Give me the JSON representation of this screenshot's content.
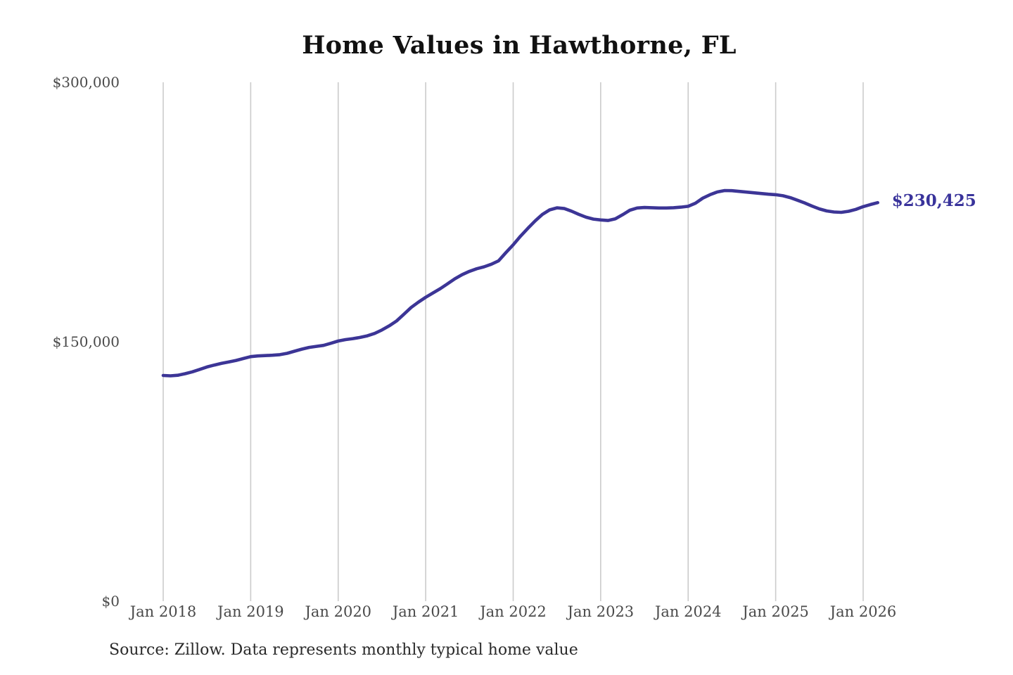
{
  "page": {
    "background": "#ffffff"
  },
  "chart": {
    "title": "Home Values in Hawthorne, FL",
    "end_label": "$230,425",
    "source": "Source: Zillow. Data represents monthly typical home value",
    "line_color": "#3c3596",
    "grid_color": "#cbcbcb",
    "tick_text_color": "#4a4a4a"
  },
  "chart_data": {
    "type": "line",
    "title": "Home Values in Hawthorne, FL",
    "xlabel": "",
    "ylabel": "",
    "ylim": [
      0,
      300000
    ],
    "grid": "vertical-only",
    "legend_position": "none",
    "y_ticks": [
      {
        "label": "$300,000",
        "value": 300000
      },
      {
        "label": "$150,000",
        "value": 150000
      },
      {
        "label": "$0",
        "value": 0
      }
    ],
    "x_ticks": [
      {
        "label": "Jan 2018",
        "month_index": 0
      },
      {
        "label": "Jan 2019",
        "month_index": 12
      },
      {
        "label": "Jan 2020",
        "month_index": 24
      },
      {
        "label": "Jan 2021",
        "month_index": 36
      },
      {
        "label": "Jan 2022",
        "month_index": 48
      },
      {
        "label": "Jan 2023",
        "month_index": 60
      },
      {
        "label": "Jan 2024",
        "month_index": 72
      },
      {
        "label": "Jan 2025",
        "month_index": 84
      },
      {
        "label": "Jan 2026",
        "month_index": 96
      }
    ],
    "annotations": [
      {
        "text": "$230,425",
        "attach": "last-point"
      }
    ],
    "series": [
      {
        "name": "Monthly typical home value",
        "start_month": "2018-01",
        "end_month": "2026-03",
        "final_value": 230425,
        "values": [
          130500,
          130300,
          130600,
          131500,
          132600,
          134000,
          135400,
          136500,
          137500,
          138300,
          139200,
          140300,
          141400,
          141800,
          142000,
          142200,
          142500,
          143300,
          144500,
          145700,
          146700,
          147300,
          147900,
          149100,
          150400,
          151200,
          151800,
          152500,
          153400,
          154800,
          156800,
          159200,
          162000,
          165800,
          169800,
          172900,
          175700,
          178200,
          180700,
          183500,
          186400,
          188800,
          190700,
          192200,
          193300,
          194800,
          196800,
          201500,
          206000,
          211000,
          215500,
          219800,
          223600,
          226200,
          227400,
          227000,
          225500,
          223600,
          222000,
          220900,
          220400,
          220100,
          221000,
          223400,
          226000,
          227300,
          227600,
          227500,
          227300,
          227300,
          227500,
          227800,
          228300,
          230100,
          233000,
          235000,
          236600,
          237400,
          237300,
          236900,
          236500,
          236100,
          235700,
          235300,
          235000,
          234400,
          233300,
          231800,
          230200,
          228400,
          226800,
          225600,
          225000,
          224800,
          225400,
          226500,
          228100,
          229300,
          230425
        ]
      }
    ]
  }
}
